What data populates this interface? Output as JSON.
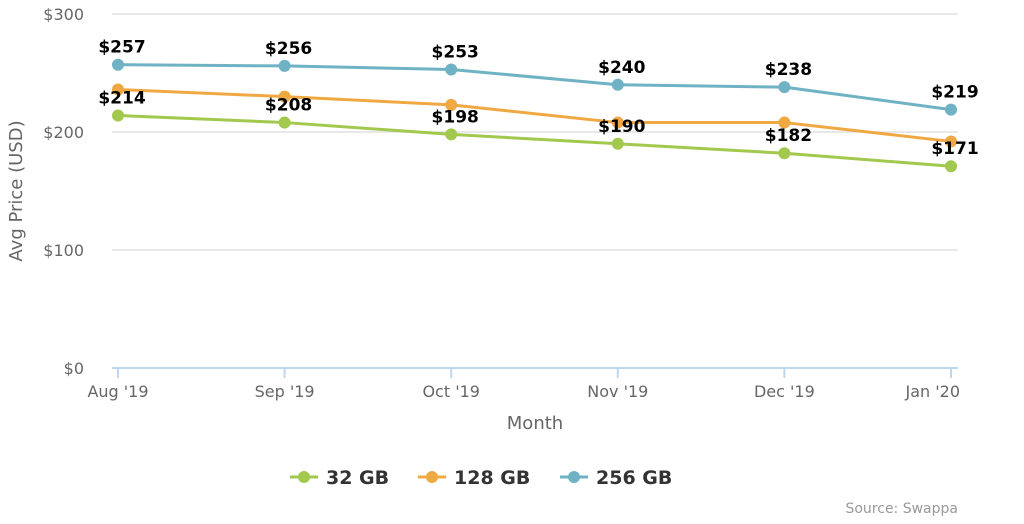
{
  "chart_data": {
    "type": "line",
    "categories": [
      "Aug '19",
      "Sep '19",
      "Oct '19",
      "Nov '19",
      "Dec '19",
      "Jan '20"
    ],
    "series": [
      {
        "name": "32 GB",
        "color": "#a2c94e",
        "values": [
          214,
          208,
          198,
          190,
          182,
          171
        ],
        "labels": [
          "$214",
          "$208",
          "$198",
          "$190",
          "$182",
          "$171"
        ]
      },
      {
        "name": "128 GB",
        "color": "#f0a843",
        "values": [
          236,
          230,
          223,
          208,
          208,
          192
        ],
        "labels": []
      },
      {
        "name": "256 GB",
        "color": "#6eb2c4",
        "values": [
          257,
          256,
          253,
          240,
          238,
          219
        ],
        "labels": [
          "$257",
          "$256",
          "$253",
          "$240",
          "$238",
          "$219"
        ]
      }
    ],
    "xlabel": "Month",
    "ylabel": "Avg Price (USD)",
    "ylim": [
      0,
      300
    ],
    "yticks": [
      {
        "value": 0,
        "label": "$0"
      },
      {
        "value": 100,
        "label": "$100"
      },
      {
        "value": 200,
        "label": "$200"
      },
      {
        "value": 300,
        "label": "$300"
      }
    ],
    "grid": true,
    "legend": "bottom-center",
    "credit": "Source: Swappa"
  }
}
